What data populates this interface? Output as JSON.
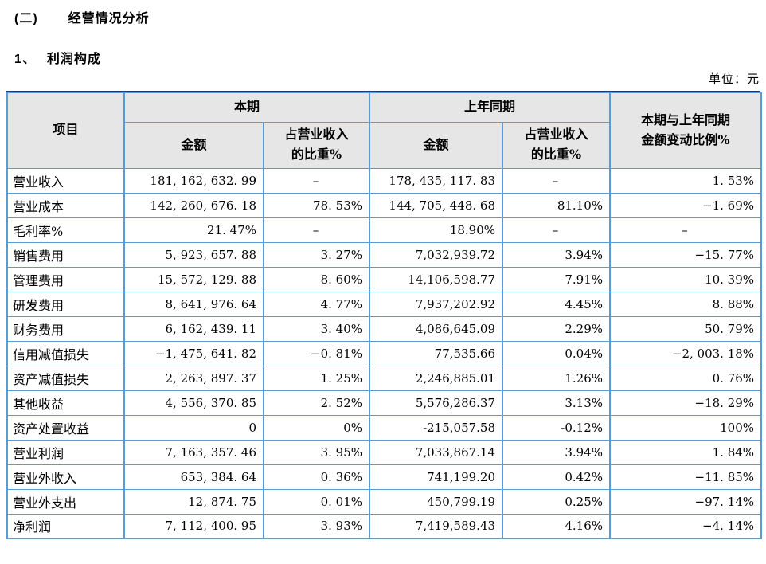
{
  "page": {
    "section_heading": {
      "number": "(二)",
      "title": "经营情况分析"
    },
    "subsection_heading": {
      "number": "1、",
      "title": "利润构成"
    },
    "unit_label": "单位：元"
  },
  "colors": {
    "table_border_blue": "#5B9BD5",
    "table_top_line": "#1F3864",
    "header_fill": "#E6E6E6",
    "text": "#000000"
  },
  "table": {
    "header": {
      "item": "项目",
      "current_period": "本期",
      "prior_period": "上年同期",
      "amount": "金额",
      "pct_of_revenue": "占营业收入\n的比重%",
      "change_ratio": "本期与上年同期\n金额变动比例%"
    },
    "rows": [
      {
        "item": "营业收入",
        "cur_amount": "181, 162, 632. 99",
        "cur_pct": "–",
        "prior_amount": "178, 435, 117. 83",
        "prior_pct": "–",
        "change": "1. 53%"
      },
      {
        "item": "营业成本",
        "cur_amount": "142, 260, 676. 18",
        "cur_pct": "78. 53%",
        "prior_amount": "144, 705, 448. 68",
        "prior_pct": "81.10%",
        "change": "−1. 69%"
      },
      {
        "item": "毛利率%",
        "cur_amount": "21. 47%",
        "cur_pct": "–",
        "prior_amount": "18.90%",
        "prior_pct": "–",
        "change": "–"
      },
      {
        "item": "销售费用",
        "cur_amount": "5, 923, 657. 88",
        "cur_pct": "3. 27%",
        "prior_amount": "7,032,939.72",
        "prior_pct": "3.94%",
        "change": "−15. 77%"
      },
      {
        "item": "管理费用",
        "cur_amount": "15, 572, 129. 88",
        "cur_pct": "8. 60%",
        "prior_amount": "14,106,598.77",
        "prior_pct": "7.91%",
        "change": "10. 39%"
      },
      {
        "item": "研发费用",
        "cur_amount": "8, 641, 976. 64",
        "cur_pct": "4. 77%",
        "prior_amount": "7,937,202.92",
        "prior_pct": "4.45%",
        "change": "8. 88%"
      },
      {
        "item": "财务费用",
        "cur_amount": "6, 162, 439. 11",
        "cur_pct": "3. 40%",
        "prior_amount": "4,086,645.09",
        "prior_pct": "2.29%",
        "change": "50. 79%"
      },
      {
        "item": "信用减值损失",
        "cur_amount": "−1, 475, 641. 82",
        "cur_pct": "−0. 81%",
        "prior_amount": "77,535.66",
        "prior_pct": "0.04%",
        "change": "−2, 003. 18%"
      },
      {
        "item": "资产减值损失",
        "cur_amount": "2, 263, 897. 37",
        "cur_pct": "1. 25%",
        "prior_amount": "2,246,885.01",
        "prior_pct": "1.26%",
        "change": "0. 76%"
      },
      {
        "item": "其他收益",
        "cur_amount": "4, 556, 370. 85",
        "cur_pct": "2. 52%",
        "prior_amount": "5,576,286.37",
        "prior_pct": "3.13%",
        "change": "−18. 29%"
      },
      {
        "item": "资产处置收益",
        "cur_amount": "0",
        "cur_pct": "0%",
        "prior_amount": "-215,057.58",
        "prior_pct": "-0.12%",
        "change": "100%"
      },
      {
        "item": "营业利润",
        "cur_amount": "7, 163, 357. 46",
        "cur_pct": "3. 95%",
        "prior_amount": "7,033,867.14",
        "prior_pct": "3.94%",
        "change": "1. 84%"
      },
      {
        "item": "营业外收入",
        "cur_amount": "653, 384. 64",
        "cur_pct": "0. 36%",
        "prior_amount": "741,199.20",
        "prior_pct": "0.42%",
        "change": "−11. 85%"
      },
      {
        "item": "营业外支出",
        "cur_amount": "12, 874. 75",
        "cur_pct": "0. 01%",
        "prior_amount": "450,799.19",
        "prior_pct": "0.25%",
        "change": "−97. 14%"
      },
      {
        "item": "净利润",
        "cur_amount": "7, 112, 400. 95",
        "cur_pct": "3. 93%",
        "prior_amount": "7,419,589.43",
        "prior_pct": "4.16%",
        "change": "−4. 14%"
      }
    ]
  }
}
